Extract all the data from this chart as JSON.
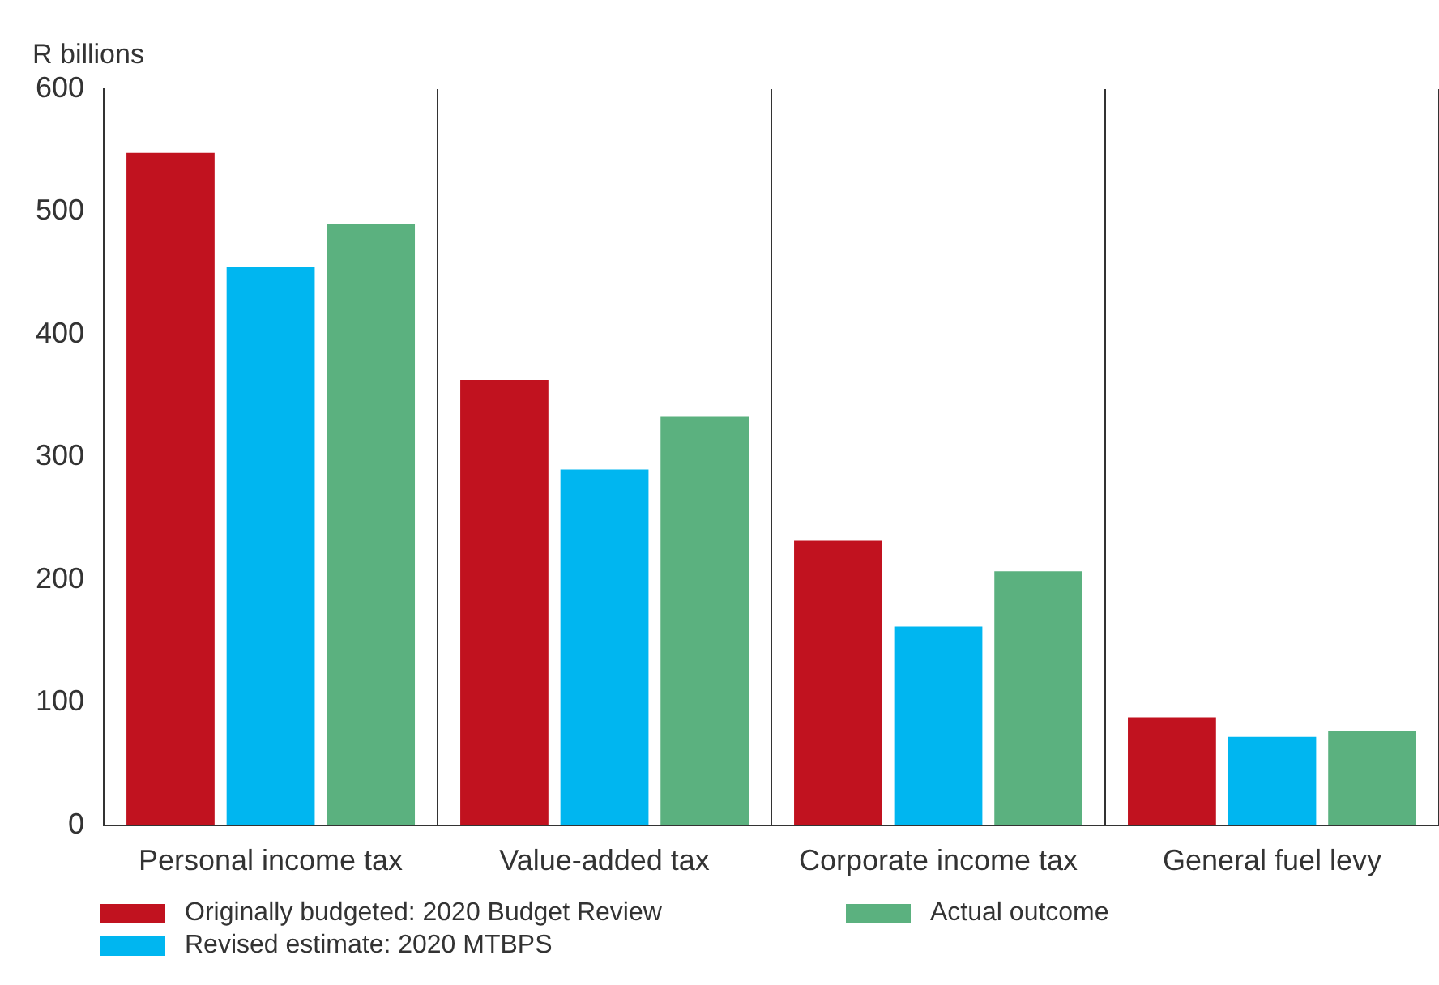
{
  "chart_data": {
    "type": "bar",
    "ylabel": "R billions",
    "categories": [
      "Personal income tax",
      "Value-added tax",
      "Corporate income tax",
      "General fuel levy"
    ],
    "series": [
      {
        "name": "Originally budgeted: 2020 Budget Review",
        "color": "#c1121f",
        "values": [
          548,
          363,
          232,
          88
        ]
      },
      {
        "name": "Revised estimate: 2020 MTBPS",
        "color": "#00b6f0",
        "values": [
          455,
          290,
          162,
          72
        ]
      },
      {
        "name": "Actual outcome",
        "color": "#5bb17f",
        "values": [
          490,
          333,
          207,
          77
        ]
      }
    ],
    "ylim": [
      0,
      600
    ],
    "yticks": [
      0,
      100,
      200,
      300,
      400,
      500,
      600
    ],
    "grid": "x",
    "legend": "bottom"
  }
}
